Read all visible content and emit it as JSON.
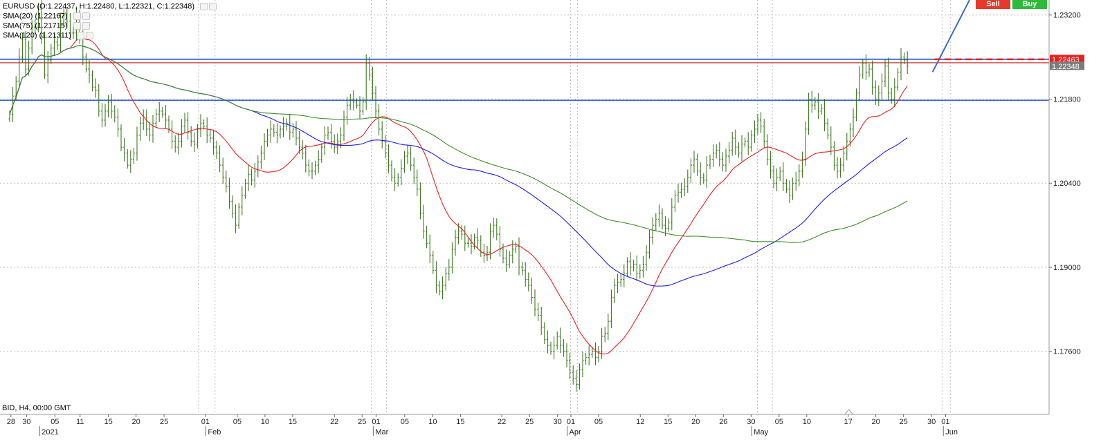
{
  "header": {
    "ohlc": "EURUSD (O:1.22437, H:1.22480, L:1.22321, C:1.22348)",
    "sma20": "SMA(20) (1.22167)",
    "sma75": "SMA(75) (1.21715)",
    "sma120": "SMA(120) (1.21311)"
  },
  "footer": {
    "bid_label": "BID, H4, 00:00 GMT"
  },
  "buttons": {
    "sell": "Sell",
    "buy": "Buy"
  },
  "colors": {
    "grid": "#bdbdbd",
    "candle": "#2d6b0e",
    "sma20": "#e81f1f",
    "sma75": "#1c1ce6",
    "sma120": "#3c8a26",
    "hline_blue": "#3a68d8",
    "hline_red": "#c9352b",
    "price_tag_current": "#e81f1f",
    "price_tag_close": "#7b7b7b",
    "sell": "#e8372b",
    "buy": "#2fb93c"
  },
  "chart_data": {
    "type": "candlestick",
    "symbol": "EURUSD",
    "timeframe": "H4",
    "ylim": [
      1.1655,
      1.2345
    ],
    "y_ticks": [
      1.232,
      1.218,
      1.204,
      1.19,
      1.176
    ],
    "x_ticks": [
      "28",
      "30",
      "05",
      "11",
      "15",
      "20",
      "25",
      "01",
      "05",
      "10",
      "15",
      "22",
      "25",
      "01",
      "05",
      "10",
      "15",
      "22",
      "25",
      "30",
      "01",
      "05",
      "12",
      "15",
      "20",
      "26",
      "30",
      "05",
      "10",
      "17",
      "20",
      "25",
      "30",
      "01"
    ],
    "x_tick_index": [
      0.4,
      5.3,
      14.2,
      22.1,
      31.0,
      39.7,
      48.5,
      61.5,
      71.5,
      80.2,
      88.9,
      102.0,
      110.7,
      115.1,
      124.1,
      132.9,
      141.6,
      154.6,
      163.3,
      172.1,
      176.3,
      185.0,
      198.1,
      206.8,
      215.5,
      224.2,
      232.9,
      241.7,
      250.4,
      263.4,
      272.1,
      280.8,
      289.6,
      294.0
    ],
    "month_labels": [
      "2021",
      "Feb",
      "Mar",
      "Apr",
      "May",
      "Jun"
    ],
    "month_label_index": [
      11.8,
      64.0,
      116.6,
      177.5,
      235.5,
      295.7
    ],
    "month_separator_index": [
      59.3,
      64.5,
      113.6,
      118.4,
      176.2,
      178.4,
      234.9,
      239.6,
      292.9,
      295.5
    ],
    "closes": [
      1.2155,
      1.2185,
      1.221,
      1.225,
      1.228,
      1.223,
      1.2265,
      1.23,
      1.23,
      1.233,
      1.2285,
      1.222,
      1.2245,
      1.2265,
      1.2275,
      1.227,
      1.231,
      1.232,
      1.231,
      1.229,
      1.229,
      1.232,
      1.228,
      1.225,
      1.223,
      1.222,
      1.22,
      1.2195,
      1.216,
      1.2145,
      1.216,
      1.2175,
      1.216,
      1.215,
      1.213,
      1.21,
      1.209,
      1.207,
      1.208,
      1.209,
      1.212,
      1.214,
      1.215,
      1.213,
      1.212,
      1.214,
      1.2155,
      1.216,
      1.2155,
      1.2145,
      1.213,
      1.211,
      1.21,
      1.211,
      1.2135,
      1.2145,
      1.2125,
      1.211,
      1.2105,
      1.213,
      1.214,
      1.2135,
      1.212,
      1.2115,
      1.21,
      1.209,
      1.207,
      1.205,
      1.2035,
      1.201,
      1.199,
      1.197,
      1.2,
      1.202,
      1.204,
      1.2055,
      1.2045,
      1.206,
      1.2075,
      1.209,
      1.211,
      1.212,
      1.213,
      1.2125,
      1.212,
      1.213,
      1.2135,
      1.214,
      1.2125,
      1.213,
      1.2115,
      1.21,
      1.209,
      1.207,
      1.206,
      1.206,
      1.207,
      1.208,
      1.21,
      1.212,
      1.2125,
      1.211,
      1.21,
      1.211,
      1.212,
      1.215,
      1.217,
      1.218,
      1.2175,
      1.217,
      1.216,
      1.2175,
      1.224,
      1.222,
      1.219,
      1.216,
      1.213,
      1.211,
      1.209,
      1.207,
      1.205,
      1.204,
      1.205,
      1.2065,
      1.2085,
      1.209,
      1.207,
      1.205,
      1.203,
      1.199,
      1.196,
      1.194,
      1.192,
      1.1895,
      1.187,
      1.186,
      1.187,
      1.189,
      1.19,
      1.193,
      1.195,
      1.196,
      1.1955,
      1.194,
      1.194,
      1.1935,
      1.195,
      1.1945,
      1.1925,
      1.192,
      1.1925,
      1.196,
      1.197,
      1.1955,
      1.193,
      1.1915,
      1.1905,
      1.192,
      1.193,
      1.1935,
      1.19,
      1.1895,
      1.188,
      1.187,
      1.185,
      1.183,
      1.182,
      1.18,
      1.178,
      1.177,
      1.176,
      1.177,
      1.1785,
      1.177,
      1.176,
      1.1745,
      1.1725,
      1.1715,
      1.1705,
      1.173,
      1.1745,
      1.175,
      1.1755,
      1.176,
      1.175,
      1.176,
      1.1785,
      1.179,
      1.181,
      1.185,
      1.187,
      1.1875,
      1.188,
      1.189,
      1.191,
      1.19,
      1.1905,
      1.189,
      1.1895,
      1.1905,
      1.1925,
      1.195,
      1.197,
      1.198,
      1.199,
      1.197,
      1.1965,
      1.1975,
      1.2,
      1.202,
      1.2025,
      1.203,
      1.2035,
      1.205,
      1.207,
      1.208,
      1.206,
      1.205,
      1.2045,
      1.207,
      1.208,
      1.209,
      1.2095,
      1.208,
      1.207,
      1.2085,
      1.2095,
      1.2115,
      1.21,
      1.209,
      1.2105,
      1.211,
      1.21,
      1.212,
      1.213,
      1.2145,
      1.2135,
      1.211,
      1.208,
      1.206,
      1.204,
      1.205,
      1.206,
      1.204,
      1.203,
      1.202,
      1.204,
      1.2045,
      1.206,
      1.208,
      1.213,
      1.218,
      1.217,
      1.2175,
      1.216,
      1.2165,
      1.214,
      1.212,
      1.21,
      1.207,
      1.206,
      1.207,
      1.209,
      1.211,
      1.213,
      1.215,
      1.219,
      1.222,
      1.224,
      1.2225,
      1.223,
      1.22,
      1.218,
      1.219,
      1.221,
      1.2235,
      1.219,
      1.218,
      1.22,
      1.2225,
      1.225,
      1.2245,
      1.2235
    ],
    "horizontal_lines": [
      {
        "value": 1.22463,
        "color": "blue"
      },
      {
        "value": 1.22405,
        "color": "red"
      },
      {
        "value": 1.2178,
        "color": "blue"
      }
    ],
    "trendline": {
      "from": [
        289.9,
        1.2225
      ],
      "to": [
        302.0,
        1.235
      ]
    },
    "current_price": 1.22463,
    "close_price": 1.22348,
    "current_price_label": "1.22463",
    "close_price_label": "1.22348",
    "dashed_level_start_index": 290.5,
    "last_candle_index": 292.0
  }
}
